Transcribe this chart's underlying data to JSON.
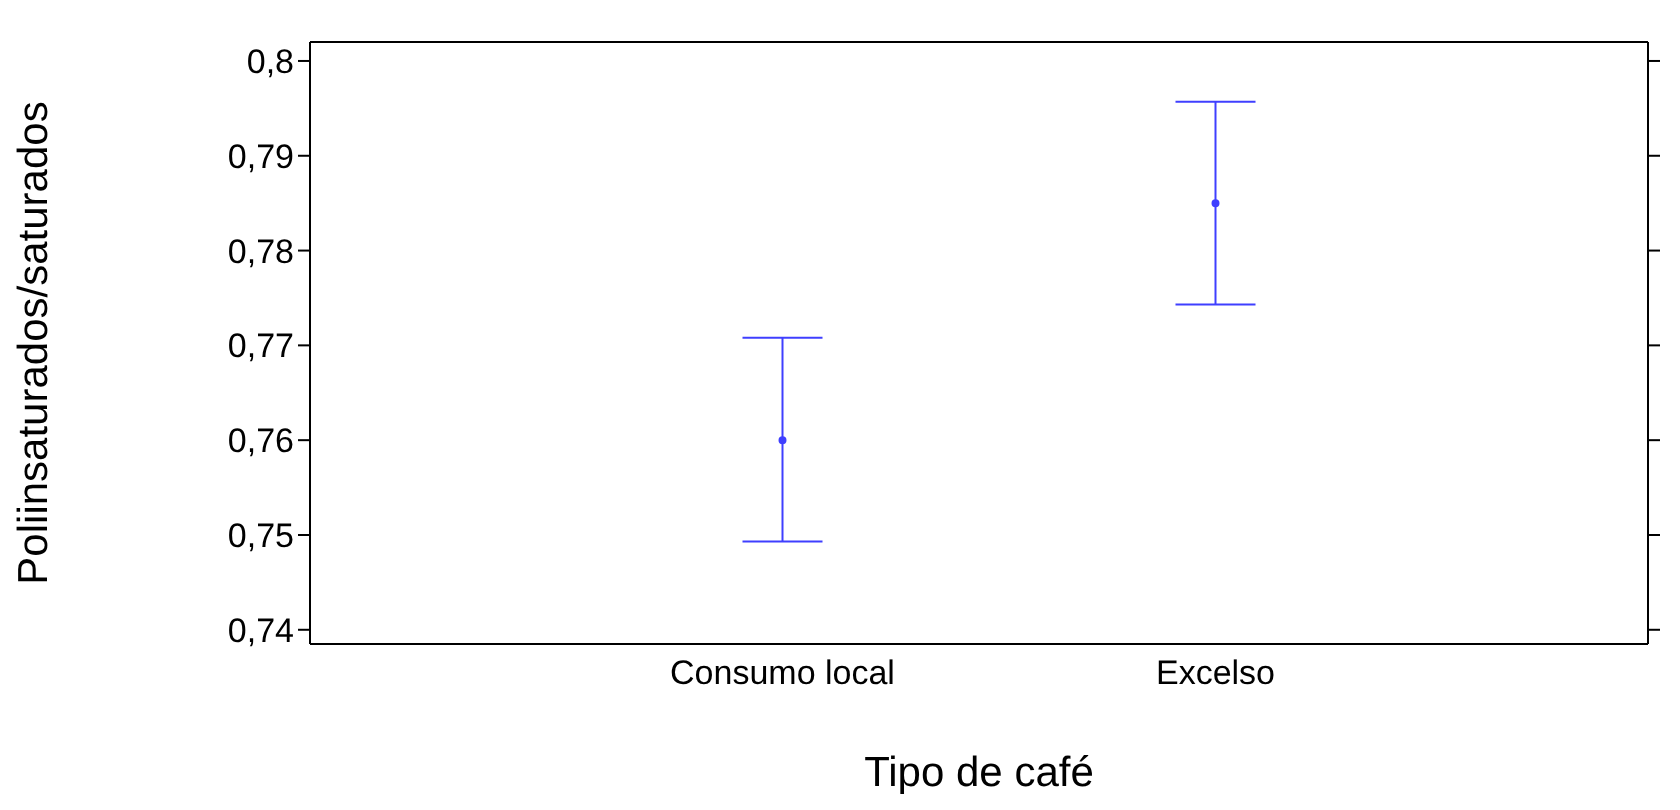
{
  "chart_data": {
    "type": "scatter",
    "xlabel": "Tipo de café",
    "ylabel": "Poliinsaturados/saturados",
    "categories": [
      "Consumo local",
      "Excelso"
    ],
    "series": [
      {
        "color": "#3f3fff",
        "values": [
          0.76,
          0.785
        ],
        "errors": [
          [
            0.7493,
            0.7708
          ],
          [
            0.7743,
            0.7957
          ]
        ]
      }
    ],
    "ylim": [
      0.7385,
      0.802
    ],
    "yticks": [
      {
        "value": 0.74,
        "label": "0,74"
      },
      {
        "value": 0.75,
        "label": "0,75"
      },
      {
        "value": 0.76,
        "label": "0,76"
      },
      {
        "value": 0.77,
        "label": "0,77"
      },
      {
        "value": 0.78,
        "label": "0,78"
      },
      {
        "value": 0.79,
        "label": "0,79"
      },
      {
        "value": 0.8,
        "label": "0,8"
      }
    ],
    "grid": false,
    "legend": false,
    "marker": "circle"
  }
}
